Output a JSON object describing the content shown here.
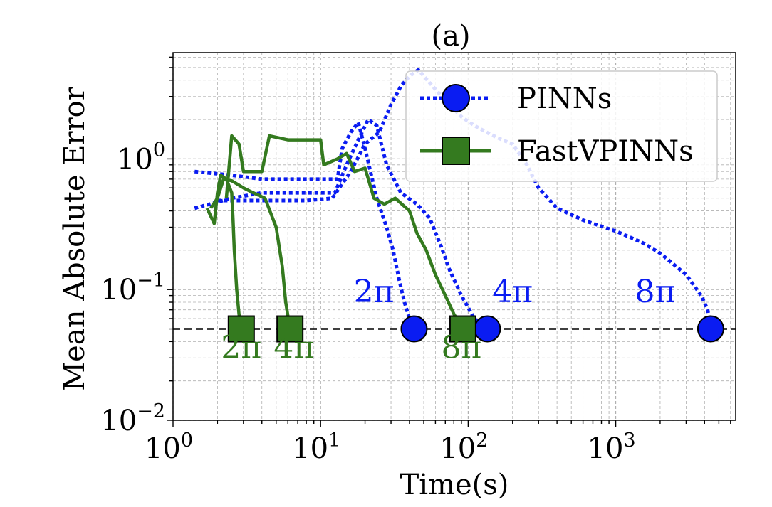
{
  "chart_data": {
    "type": "line",
    "title": "(a)",
    "xlabel": "Time(s)",
    "ylabel": "Mean Absolute Error",
    "xscale": "log",
    "yscale": "log",
    "xlim": [
      1,
      6500
    ],
    "ylim": [
      0.01,
      6.5
    ],
    "xticks": [
      {
        "base": "10",
        "exp": "0",
        "value": 1
      },
      {
        "base": "10",
        "exp": "1",
        "value": 10
      },
      {
        "base": "10",
        "exp": "2",
        "value": 100
      },
      {
        "base": "10",
        "exp": "3",
        "value": 1000
      }
    ],
    "yticks": [
      {
        "base": "10",
        "exp": "0",
        "value": 1
      },
      {
        "base": "10",
        "exp": "−1",
        "value": 0.1
      },
      {
        "base": "10",
        "exp": "−2",
        "value": 0.01
      }
    ],
    "grid": true,
    "legend": {
      "position": "top-right",
      "entries": [
        {
          "label": "PINNs",
          "color": "#0a1cf2",
          "marker": "circle",
          "linestyle": "dotted"
        },
        {
          "label": "FastVPINNs",
          "color": "#347a1f",
          "marker": "square",
          "linestyle": "solid"
        }
      ]
    },
    "threshold": {
      "y": 0.05,
      "style": "dashed",
      "color": "#000000"
    },
    "series": [
      {
        "group": "PINNs",
        "annotation": "2π",
        "points": [
          [
            1.4,
            0.8
          ],
          [
            2.5,
            0.75
          ],
          [
            4,
            0.7
          ],
          [
            8,
            0.7
          ],
          [
            13,
            0.7
          ],
          [
            14,
            1.2
          ],
          [
            16,
            1.6
          ],
          [
            18,
            1.9
          ],
          [
            20,
            1.2
          ],
          [
            24,
            0.5
          ],
          [
            28,
            0.3
          ],
          [
            31,
            0.2
          ],
          [
            34,
            0.12
          ],
          [
            37,
            0.08
          ],
          [
            40,
            0.06
          ],
          [
            43,
            0.05
          ]
        ]
      },
      {
        "group": "PINNs",
        "annotation": "4π",
        "points": [
          [
            1.4,
            0.42
          ],
          [
            2.5,
            0.5
          ],
          [
            4,
            0.55
          ],
          [
            8,
            0.55
          ],
          [
            12.5,
            0.55
          ],
          [
            15,
            0.9
          ],
          [
            18,
            1.4
          ],
          [
            21,
            2.0
          ],
          [
            24,
            1.8
          ],
          [
            28,
            0.9
          ],
          [
            35,
            0.55
          ],
          [
            45,
            0.45
          ],
          [
            55,
            0.35
          ],
          [
            65,
            0.22
          ],
          [
            75,
            0.14
          ],
          [
            90,
            0.09
          ],
          [
            110,
            0.06
          ],
          [
            135,
            0.05
          ]
        ]
      },
      {
        "group": "PINNs",
        "annotation": "8π",
        "points": [
          [
            2.0,
            0.48
          ],
          [
            4,
            0.48
          ],
          [
            8,
            0.48
          ],
          [
            12,
            0.5
          ],
          [
            16,
            0.8
          ],
          [
            20,
            1.3
          ],
          [
            25,
            1.6
          ],
          [
            30,
            2.6
          ],
          [
            35,
            3.6
          ],
          [
            40,
            4.3
          ],
          [
            46,
            4.8
          ],
          [
            55,
            3.8
          ],
          [
            70,
            2.8
          ],
          [
            90,
            2.1
          ],
          [
            110,
            1.8
          ],
          [
            140,
            1.55
          ],
          [
            170,
            1.4
          ],
          [
            200,
            1.3
          ],
          [
            250,
            0.9
          ],
          [
            300,
            0.6
          ],
          [
            400,
            0.42
          ],
          [
            600,
            0.34
          ],
          [
            1000,
            0.28
          ],
          [
            1500,
            0.23
          ],
          [
            2000,
            0.19
          ],
          [
            3000,
            0.13
          ],
          [
            3800,
            0.09
          ],
          [
            4200,
            0.07
          ],
          [
            4400,
            0.05
          ]
        ]
      },
      {
        "group": "FastVPINNs",
        "annotation": "2π",
        "points": [
          [
            1.7,
            0.42
          ],
          [
            1.9,
            0.32
          ],
          [
            2.0,
            0.55
          ],
          [
            2.1,
            0.75
          ],
          [
            2.3,
            0.7
          ],
          [
            2.5,
            0.55
          ],
          [
            2.55,
            0.35
          ],
          [
            2.6,
            0.2
          ],
          [
            2.7,
            0.1
          ],
          [
            2.8,
            0.065
          ],
          [
            2.9,
            0.05
          ]
        ]
      },
      {
        "group": "FastVPINNs",
        "annotation": "4π",
        "points": [
          [
            1.8,
            0.42
          ],
          [
            2.0,
            0.5
          ],
          [
            2.2,
            0.7
          ],
          [
            2.5,
            0.68
          ],
          [
            3.0,
            0.6
          ],
          [
            3.5,
            0.55
          ],
          [
            4.2,
            0.5
          ],
          [
            5.0,
            0.3
          ],
          [
            5.5,
            0.15
          ],
          [
            5.8,
            0.08
          ],
          [
            6.2,
            0.05
          ]
        ]
      },
      {
        "group": "FastVPINNs",
        "annotation": "8π",
        "points": [
          [
            2.3,
            0.5
          ],
          [
            2.5,
            1.5
          ],
          [
            2.8,
            1.3
          ],
          [
            3.0,
            0.8
          ],
          [
            4.0,
            0.8
          ],
          [
            4.5,
            1.5
          ],
          [
            6,
            1.4
          ],
          [
            8,
            1.4
          ],
          [
            10,
            1.4
          ],
          [
            10.5,
            0.9
          ],
          [
            13,
            1.0
          ],
          [
            15,
            1.1
          ],
          [
            17,
            0.8
          ],
          [
            20,
            0.85
          ],
          [
            23,
            0.5
          ],
          [
            27,
            0.45
          ],
          [
            32,
            0.5
          ],
          [
            40,
            0.4
          ],
          [
            45,
            0.27
          ],
          [
            52,
            0.2
          ],
          [
            60,
            0.13
          ],
          [
            70,
            0.09
          ],
          [
            80,
            0.065
          ],
          [
            92,
            0.05
          ]
        ]
      }
    ],
    "markers": [
      {
        "group": "PINNs",
        "shape": "circle",
        "x": 43,
        "y": 0.05
      },
      {
        "group": "PINNs",
        "shape": "circle",
        "x": 135,
        "y": 0.05
      },
      {
        "group": "PINNs",
        "shape": "circle",
        "x": 4400,
        "y": 0.05
      },
      {
        "group": "FastVPINNs",
        "shape": "square",
        "x": 2.9,
        "y": 0.05
      },
      {
        "group": "FastVPINNs",
        "shape": "square",
        "x": 6.2,
        "y": 0.05
      },
      {
        "group": "FastVPINNs",
        "shape": "square",
        "x": 92,
        "y": 0.05
      }
    ],
    "annotations": [
      {
        "text": "2π",
        "color": "#0a1cf2",
        "x": 23,
        "y": 0.08
      },
      {
        "text": "4π",
        "color": "#0a1cf2",
        "x": 200,
        "y": 0.08
      },
      {
        "text": "8π",
        "color": "#0a1cf2",
        "x": 1850,
        "y": 0.08
      },
      {
        "text": "2π",
        "color": "#347a1f",
        "x": 2.9,
        "y": 0.03
      },
      {
        "text": "4π",
        "color": "#347a1f",
        "x": 6.6,
        "y": 0.03
      },
      {
        "text": "8π",
        "color": "#347a1f",
        "x": 90,
        "y": 0.03
      }
    ]
  }
}
